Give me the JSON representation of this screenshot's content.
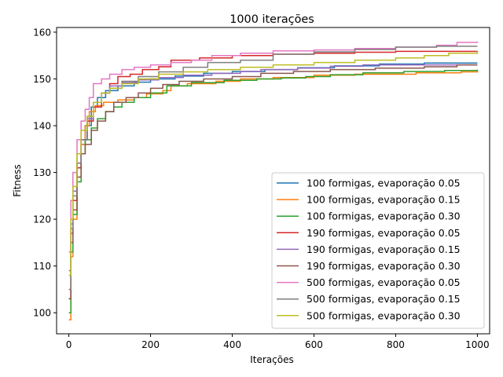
{
  "chart_data": {
    "type": "line",
    "title": "1000 iterações",
    "xlabel": "Iterações",
    "ylabel": "Fitness",
    "xlim": [
      -30,
      1030
    ],
    "ylim": [
      95.5,
      161
    ],
    "xticks": [
      0,
      200,
      400,
      600,
      800,
      1000
    ],
    "yticks": [
      100,
      110,
      120,
      130,
      140,
      150,
      160
    ],
    "legend_position": "lower-right",
    "grid": false,
    "series": [
      {
        "name": "100 formigas, evaporação 0.05",
        "color": "#1f77b4",
        "points": [
          [
            0,
            103
          ],
          [
            5,
            118
          ],
          [
            10,
            124
          ],
          [
            20,
            131
          ],
          [
            30,
            136
          ],
          [
            40,
            140
          ],
          [
            55,
            144
          ],
          [
            70,
            146
          ],
          [
            90,
            147.5
          ],
          [
            120,
            148.5
          ],
          [
            160,
            149.3
          ],
          [
            200,
            150
          ],
          [
            260,
            150.6
          ],
          [
            330,
            151.2
          ],
          [
            400,
            151.6
          ],
          [
            480,
            152
          ],
          [
            560,
            152.4
          ],
          [
            650,
            152.8
          ],
          [
            760,
            153.2
          ],
          [
            870,
            153.4
          ],
          [
            1000,
            153.4
          ]
        ]
      },
      {
        "name": "100 formigas, evaporação 0.15",
        "color": "#ff7f0e",
        "points": [
          [
            0,
            98.5
          ],
          [
            5,
            112
          ],
          [
            10,
            120
          ],
          [
            20,
            129
          ],
          [
            30,
            136
          ],
          [
            40,
            140
          ],
          [
            50,
            143
          ],
          [
            65,
            144.3
          ],
          [
            85,
            145
          ],
          [
            120,
            145.5
          ],
          [
            160,
            146
          ],
          [
            190,
            146.8
          ],
          [
            230,
            147.5
          ],
          [
            250,
            148.5
          ],
          [
            290,
            149
          ],
          [
            360,
            149.5
          ],
          [
            420,
            150
          ],
          [
            500,
            150.3
          ],
          [
            600,
            150.8
          ],
          [
            700,
            151
          ],
          [
            850,
            151.3
          ],
          [
            960,
            151.5
          ],
          [
            1000,
            151.8
          ]
        ]
      },
      {
        "name": "100 formigas, evaporação 0.30",
        "color": "#2ca02c",
        "points": [
          [
            0,
            100
          ],
          [
            5,
            113
          ],
          [
            10,
            121
          ],
          [
            20,
            128
          ],
          [
            30,
            134
          ],
          [
            40,
            137
          ],
          [
            55,
            139.5
          ],
          [
            70,
            141.5
          ],
          [
            90,
            143
          ],
          [
            110,
            144
          ],
          [
            130,
            145
          ],
          [
            160,
            146
          ],
          [
            200,
            147
          ],
          [
            240,
            148.5
          ],
          [
            300,
            149.2
          ],
          [
            380,
            149.7
          ],
          [
            460,
            150
          ],
          [
            520,
            150.2
          ],
          [
            580,
            150.5
          ],
          [
            640,
            150.9
          ],
          [
            720,
            151.3
          ],
          [
            820,
            151.6
          ],
          [
            920,
            151.8
          ],
          [
            1000,
            152
          ]
        ]
      },
      {
        "name": "190 formigas, evaporação 0.05",
        "color": "#d62728",
        "points": [
          [
            0,
            103
          ],
          [
            5,
            117
          ],
          [
            10,
            124
          ],
          [
            20,
            131
          ],
          [
            30,
            137
          ],
          [
            45,
            141
          ],
          [
            60,
            144
          ],
          [
            80,
            147
          ],
          [
            100,
            149
          ],
          [
            120,
            150.5
          ],
          [
            150,
            151
          ],
          [
            180,
            152
          ],
          [
            220,
            152.6
          ],
          [
            250,
            154
          ],
          [
            320,
            154.5
          ],
          [
            400,
            155
          ],
          [
            500,
            155.3
          ],
          [
            600,
            155.5
          ],
          [
            700,
            155.7
          ],
          [
            800,
            155.9
          ],
          [
            1000,
            156
          ]
        ]
      },
      {
        "name": "190 formigas, evaporação 0.15",
        "color": "#9467bd",
        "points": [
          [
            0,
            109
          ],
          [
            5,
            119
          ],
          [
            10,
            126
          ],
          [
            20,
            132
          ],
          [
            30,
            137
          ],
          [
            45,
            141.5
          ],
          [
            60,
            145
          ],
          [
            80,
            147
          ],
          [
            100,
            148.5
          ],
          [
            130,
            149.2
          ],
          [
            170,
            149.8
          ],
          [
            220,
            150.3
          ],
          [
            280,
            150.8
          ],
          [
            350,
            151.2
          ],
          [
            420,
            151.6
          ],
          [
            470,
            152
          ],
          [
            560,
            152.3
          ],
          [
            640,
            152.7
          ],
          [
            720,
            153
          ],
          [
            800,
            153
          ],
          [
            900,
            153
          ],
          [
            1000,
            153
          ]
        ]
      },
      {
        "name": "190 formigas, evaporação 0.30",
        "color": "#8c564b",
        "points": [
          [
            0,
            103
          ],
          [
            5,
            115
          ],
          [
            10,
            122
          ],
          [
            20,
            129
          ],
          [
            30,
            134
          ],
          [
            40,
            136
          ],
          [
            55,
            139
          ],
          [
            70,
            141
          ],
          [
            90,
            143
          ],
          [
            110,
            145
          ],
          [
            140,
            146
          ],
          [
            170,
            147
          ],
          [
            200,
            148
          ],
          [
            230,
            148.8
          ],
          [
            270,
            149.5
          ],
          [
            330,
            150
          ],
          [
            400,
            150.5
          ],
          [
            470,
            151.2
          ],
          [
            550,
            151.6
          ],
          [
            640,
            152
          ],
          [
            750,
            152.3
          ],
          [
            870,
            152.6
          ],
          [
            950,
            153
          ],
          [
            1000,
            153
          ]
        ]
      },
      {
        "name": "500 formigas, evaporação 0.05",
        "color": "#e377c2",
        "points": [
          [
            0,
            113
          ],
          [
            5,
            124
          ],
          [
            10,
            130
          ],
          [
            20,
            137
          ],
          [
            30,
            141
          ],
          [
            40,
            143.5
          ],
          [
            50,
            146
          ],
          [
            60,
            149
          ],
          [
            80,
            150
          ],
          [
            100,
            151
          ],
          [
            130,
            152
          ],
          [
            160,
            152.5
          ],
          [
            200,
            153
          ],
          [
            250,
            153.5
          ],
          [
            300,
            154
          ],
          [
            350,
            155
          ],
          [
            420,
            155.5
          ],
          [
            500,
            156
          ],
          [
            600,
            156.2
          ],
          [
            700,
            156.5
          ],
          [
            800,
            156.8
          ],
          [
            900,
            157.2
          ],
          [
            950,
            157.8
          ],
          [
            1000,
            158
          ]
        ]
      },
      {
        "name": "500 formigas, evaporação 0.15",
        "color": "#7f7f7f",
        "points": [
          [
            0,
            105
          ],
          [
            5,
            118
          ],
          [
            10,
            125
          ],
          [
            20,
            132
          ],
          [
            30,
            137
          ],
          [
            45,
            142
          ],
          [
            60,
            145
          ],
          [
            80,
            147
          ],
          [
            100,
            148
          ],
          [
            130,
            149.5
          ],
          [
            170,
            150.5
          ],
          [
            220,
            151.5
          ],
          [
            280,
            152.5
          ],
          [
            340,
            153.5
          ],
          [
            420,
            154
          ],
          [
            490,
            154
          ],
          [
            500,
            155.3
          ],
          [
            600,
            155.8
          ],
          [
            700,
            156.3
          ],
          [
            800,
            156.8
          ],
          [
            900,
            157
          ],
          [
            1000,
            157
          ]
        ]
      },
      {
        "name": "500 formigas, evaporação 0.30",
        "color": "#bcbd22",
        "points": [
          [
            0,
            108
          ],
          [
            5,
            120
          ],
          [
            10,
            127
          ],
          [
            20,
            134
          ],
          [
            30,
            139
          ],
          [
            45,
            142
          ],
          [
            60,
            145
          ],
          [
            80,
            147
          ],
          [
            100,
            148
          ],
          [
            130,
            149
          ],
          [
            170,
            150
          ],
          [
            220,
            151
          ],
          [
            280,
            151.5
          ],
          [
            340,
            152
          ],
          [
            420,
            152.5
          ],
          [
            500,
            153
          ],
          [
            600,
            153.5
          ],
          [
            700,
            154
          ],
          [
            800,
            154.5
          ],
          [
            870,
            155
          ],
          [
            930,
            155.5
          ],
          [
            1000,
            156
          ]
        ]
      }
    ]
  }
}
